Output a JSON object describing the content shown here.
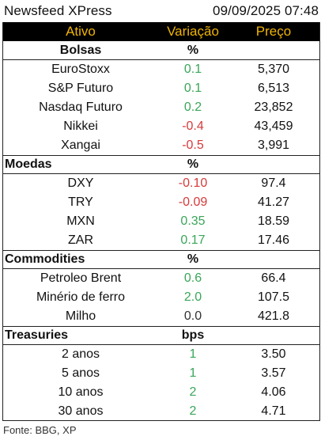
{
  "header": {
    "title": "Newsfeed XPress",
    "datetime": "09/09/2025 07:48"
  },
  "columns": {
    "asset": "Ativo",
    "change": "Variação",
    "price": "Preço"
  },
  "colors": {
    "header_bg": "#000000",
    "header_text": "#f0b400",
    "positive": "#3aa65a",
    "negative": "#d63a3a"
  },
  "sections": [
    {
      "label": "Bolsas",
      "unit": "%",
      "rows": [
        {
          "asset": "EuroStoxx",
          "change": "0.1",
          "price": "5,370",
          "sign": "pos"
        },
        {
          "asset": "S&P Futuro",
          "change": "0.1",
          "price": "6,513",
          "sign": "pos"
        },
        {
          "asset": "Nasdaq Futuro",
          "change": "0.2",
          "price": "23,852",
          "sign": "pos"
        },
        {
          "asset": "Nikkei",
          "change": "-0.4",
          "price": "43,459",
          "sign": "neg"
        },
        {
          "asset": "Xangai",
          "change": "-0.5",
          "price": "3,991",
          "sign": "neg"
        }
      ]
    },
    {
      "label": "Moedas",
      "unit": "%",
      "rows": [
        {
          "asset": "DXY",
          "change": "-0.10",
          "price": "97.4",
          "sign": "neg"
        },
        {
          "asset": "TRY",
          "change": "-0.09",
          "price": "41.27",
          "sign": "neg"
        },
        {
          "asset": "MXN",
          "change": "0.35",
          "price": "18.59",
          "sign": "pos"
        },
        {
          "asset": "ZAR",
          "change": "0.17",
          "price": "17.46",
          "sign": "pos"
        }
      ]
    },
    {
      "label": "Commodities",
      "unit": "%",
      "rows": [
        {
          "asset": "Petroleo Brent",
          "change": "0.6",
          "price": "66.4",
          "sign": "pos"
        },
        {
          "asset": "Minério de ferro",
          "change": "2.0",
          "price": "107.5",
          "sign": "pos"
        },
        {
          "asset": "Milho",
          "change": "0.0",
          "price": "421.8",
          "sign": "zero"
        }
      ]
    },
    {
      "label": "Treasuries",
      "unit": "bps",
      "rows": [
        {
          "asset": "2 anos",
          "change": "1",
          "price": "3.50",
          "sign": "pos"
        },
        {
          "asset": "5 anos",
          "change": "1",
          "price": "3.57",
          "sign": "pos"
        },
        {
          "asset": "10 anos",
          "change": "2",
          "price": "4.06",
          "sign": "pos"
        },
        {
          "asset": "30 anos",
          "change": "2",
          "price": "4.71",
          "sign": "pos"
        }
      ]
    }
  ],
  "footer": {
    "source": "Fonte: BBG, XP"
  }
}
